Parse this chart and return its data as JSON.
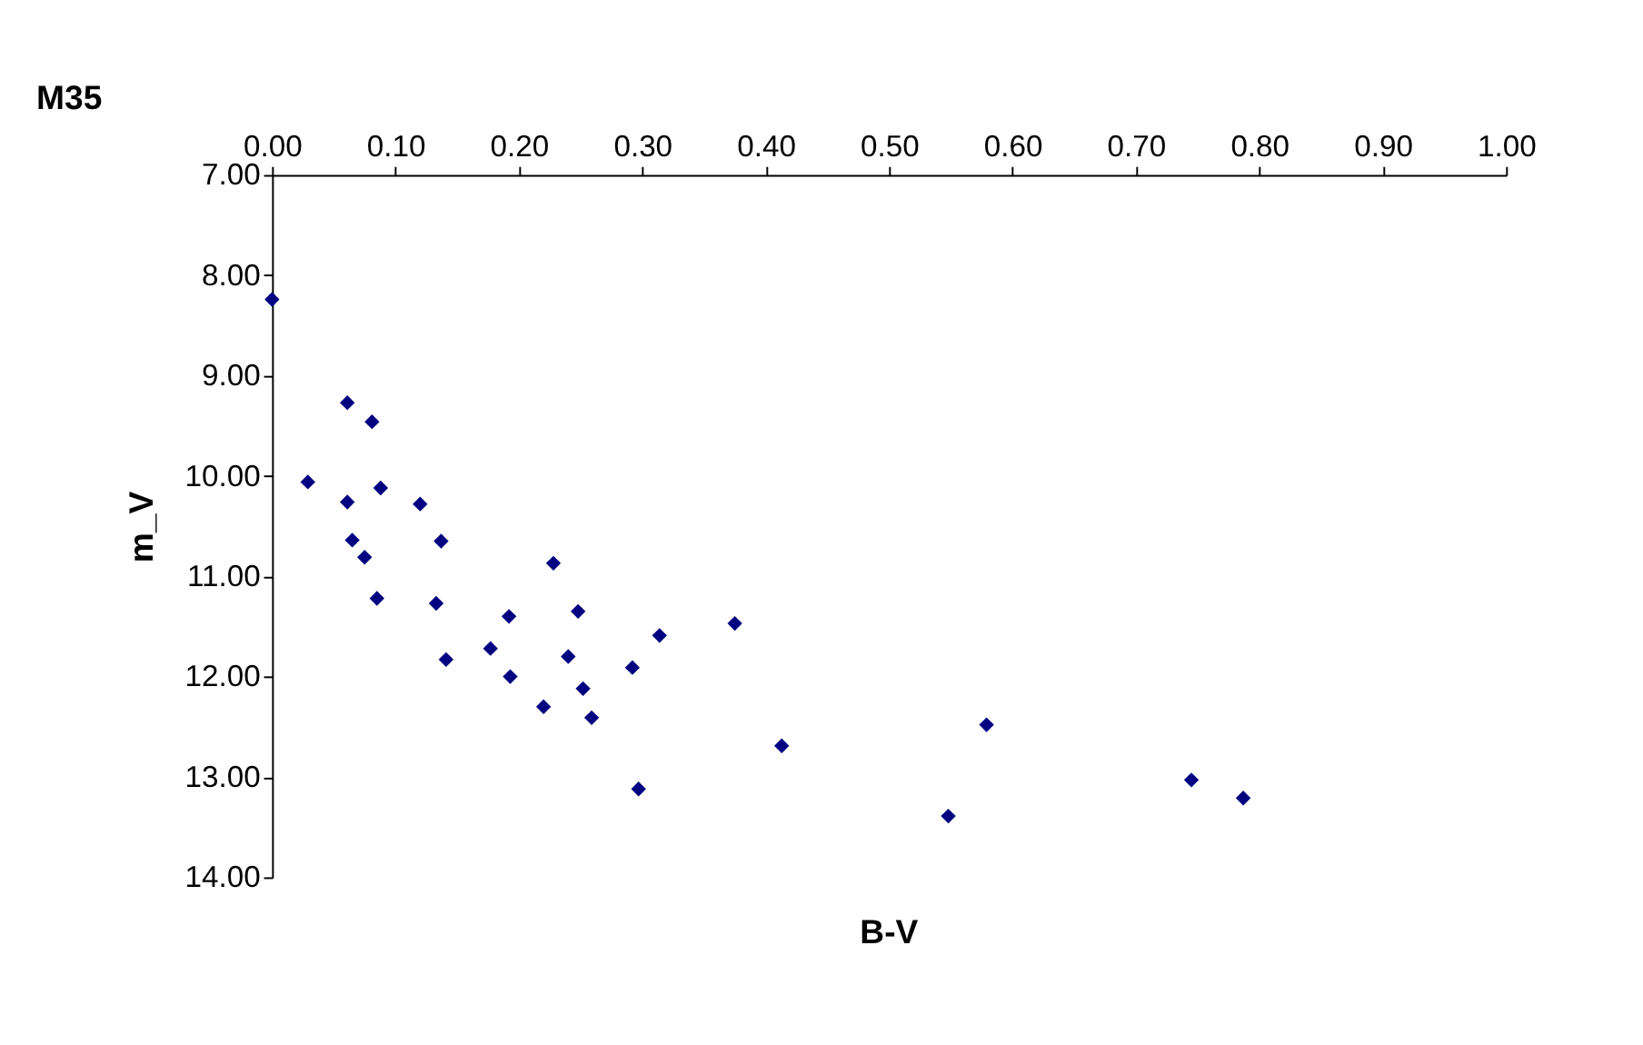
{
  "chart_data": {
    "type": "scatter",
    "title": "M35",
    "xlabel": "B-V",
    "ylabel": "m_V",
    "x": [
      0.0,
      0.061,
      0.081,
      0.029,
      0.061,
      0.088,
      0.12,
      0.065,
      0.137,
      0.075,
      0.228,
      0.085,
      0.133,
      0.248,
      0.192,
      0.375,
      0.314,
      0.177,
      0.24,
      0.141,
      0.292,
      0.193,
      0.252,
      0.22,
      0.259,
      0.579,
      0.413,
      0.297,
      0.745,
      0.787,
      0.548
    ],
    "series": [
      {
        "color": "#000080",
        "values": [
          8.24,
          9.27,
          9.46,
          10.06,
          10.26,
          10.12,
          10.28,
          10.64,
          10.65,
          10.81,
          10.87,
          11.22,
          11.27,
          11.35,
          11.4,
          11.47,
          11.59,
          11.72,
          11.8,
          11.83,
          11.91,
          12.0,
          12.12,
          12.3,
          12.41,
          12.48,
          12.69,
          13.12,
          13.03,
          13.21,
          13.39
        ]
      }
    ],
    "xlim": [
      0,
      1
    ],
    "xticks": [
      {
        "value": 0,
        "label": "0.00"
      },
      {
        "value": 0.1,
        "label": "0.10"
      },
      {
        "value": 0.2,
        "label": "0.20"
      },
      {
        "value": 0.3,
        "label": "0.30"
      },
      {
        "value": 0.4,
        "label": "0.40"
      },
      {
        "value": 0.5,
        "label": "0.50"
      },
      {
        "value": 0.6,
        "label": "0.60"
      },
      {
        "value": 0.7,
        "label": "0.70"
      },
      {
        "value": 0.8,
        "label": "0.80"
      },
      {
        "value": 0.9,
        "label": "0.90"
      },
      {
        "value": 1,
        "label": "1.00"
      }
    ],
    "ylim": [
      14,
      7
    ],
    "yticks": [
      {
        "value": 7,
        "label": "7.00"
      },
      {
        "value": 8,
        "label": "8.00"
      },
      {
        "value": 9,
        "label": "9.00"
      },
      {
        "value": 10,
        "label": "10.00"
      },
      {
        "value": 11,
        "label": "11.00"
      },
      {
        "value": 12,
        "label": "12.00"
      },
      {
        "value": 13,
        "label": "13.00"
      },
      {
        "value": 14,
        "label": "14.00"
      }
    ],
    "marker": "diamond",
    "grid": false
  }
}
